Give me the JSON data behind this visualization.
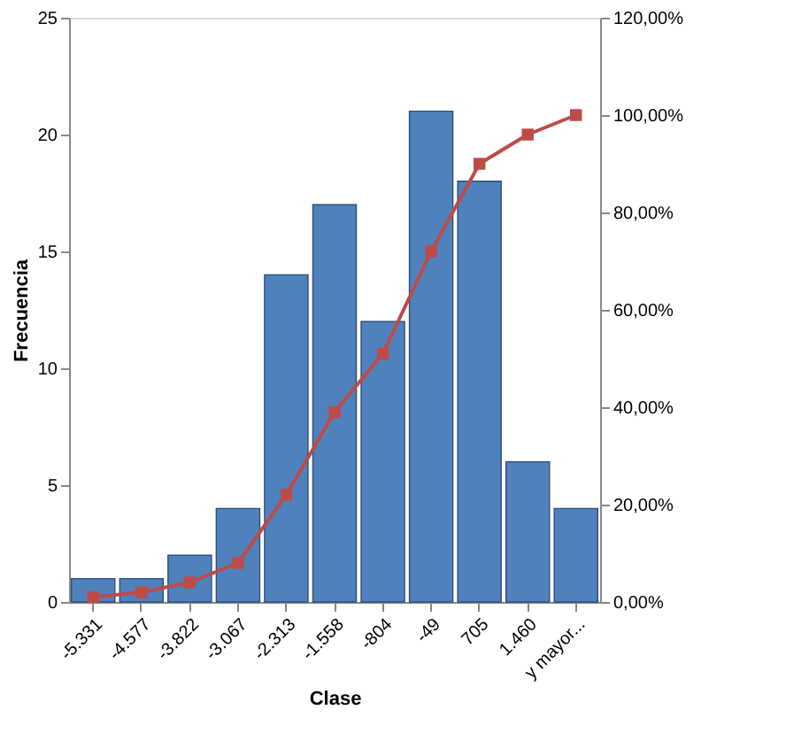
{
  "chart_data": {
    "type": "bar",
    "xlabel": "Clase",
    "ylabel": "Frecuencia",
    "categories": [
      "-5.331",
      "-4.577",
      "-3.822",
      "-3.067",
      "-2.313",
      "-1.558",
      "-804",
      "-49",
      "705",
      "1.460",
      "y mayor..."
    ],
    "series": [
      {
        "color": "#4f81bd",
        "values": [
          1,
          1,
          2,
          4,
          14,
          17,
          12,
          21,
          18,
          6,
          4
        ]
      },
      {
        "type": "line",
        "axis": "y2",
        "color": "#be4b48",
        "marker": "square",
        "values": [
          1,
          2,
          4,
          8,
          22,
          39,
          51,
          72,
          90,
          96,
          100
        ]
      }
    ],
    "ylim": [
      0,
      25
    ],
    "yticks": [
      0,
      5,
      10,
      15,
      20,
      25
    ],
    "y2lim": [
      0,
      120
    ],
    "y2ticks": [
      {
        "value": 0,
        "label": "0,00%"
      },
      {
        "value": 20,
        "label": "20,00%"
      },
      {
        "value": 40,
        "label": "40,00%"
      },
      {
        "value": 60,
        "label": "60,00%"
      },
      {
        "value": 80,
        "label": "80,00%"
      },
      {
        "value": 100,
        "label": "100,00%"
      },
      {
        "value": 120,
        "label": "120,00%"
      }
    ],
    "grid": false
  }
}
